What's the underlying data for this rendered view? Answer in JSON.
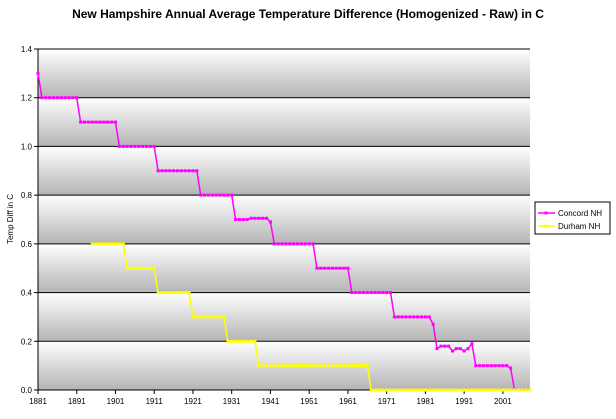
{
  "chart_data": {
    "type": "line",
    "title": "New Hampshire Annual Average Temperature Difference (Homogenized - Raw) in C",
    "xlabel": "",
    "ylabel": "Temp Diff in C",
    "xlim": [
      1881,
      2008
    ],
    "ylim": [
      0,
      1.4
    ],
    "grid": true,
    "legend_position": "right",
    "x_ticks": [
      "1881",
      "1891",
      "1901",
      "1911",
      "1921",
      "1931",
      "1941",
      "1951",
      "1961",
      "1971",
      "1981",
      "1991",
      "2001"
    ],
    "y_ticks": [
      "0.0",
      "0.2",
      "0.4",
      "0.6",
      "0.8",
      "1.0",
      "1.2",
      "1.4"
    ],
    "series": [
      {
        "name": "Concord NH",
        "color": "#ff00ff",
        "segments": [
          {
            "from": 1881,
            "to": 1881,
            "value": 1.3
          },
          {
            "from": 1882,
            "to": 1891,
            "value": 1.2
          },
          {
            "from": 1892,
            "to": 1901,
            "value": 1.1
          },
          {
            "from": 1902,
            "to": 1911,
            "value": 1.0
          },
          {
            "from": 1912,
            "to": 1922,
            "value": 0.9
          },
          {
            "from": 1923,
            "to": 1931,
            "value": 0.8
          },
          {
            "from": 1932,
            "to": 1935,
            "value": 0.7
          },
          {
            "from": 1936,
            "to": 1940,
            "value": 0.705
          },
          {
            "from": 1941,
            "to": 1941,
            "value": 0.69
          },
          {
            "from": 1942,
            "to": 1952,
            "value": 0.6
          },
          {
            "from": 1953,
            "to": 1961,
            "value": 0.5
          },
          {
            "from": 1962,
            "to": 1972,
            "value": 0.4
          },
          {
            "from": 1973,
            "to": 1982,
            "value": 0.3
          },
          {
            "from": 1983,
            "to": 1983,
            "value": 0.27
          },
          {
            "from": 1984,
            "to": 1984,
            "value": 0.17
          },
          {
            "from": 1985,
            "to": 1987,
            "value": 0.18
          },
          {
            "from": 1988,
            "to": 1988,
            "value": 0.16
          },
          {
            "from": 1989,
            "to": 1990,
            "value": 0.17
          },
          {
            "from": 1991,
            "to": 1991,
            "value": 0.16
          },
          {
            "from": 1992,
            "to": 1992,
            "value": 0.17
          },
          {
            "from": 1993,
            "to": 1993,
            "value": 0.19
          },
          {
            "from": 1994,
            "to": 2002,
            "value": 0.1
          },
          {
            "from": 2003,
            "to": 2003,
            "value": 0.09
          },
          {
            "from": 2004,
            "to": 2008,
            "value": 0.0
          }
        ]
      },
      {
        "name": "Durham NH",
        "color": "#ffff00",
        "segments": [
          {
            "from": 1895,
            "to": 1903,
            "value": 0.6
          },
          {
            "from": 1904,
            "to": 1911,
            "value": 0.5
          },
          {
            "from": 1912,
            "to": 1920,
            "value": 0.4
          },
          {
            "from": 1921,
            "to": 1929,
            "value": 0.3
          },
          {
            "from": 1930,
            "to": 1937,
            "value": 0.2
          },
          {
            "from": 1938,
            "to": 1966,
            "value": 0.1
          },
          {
            "from": 1967,
            "to": 2008,
            "value": 0.0
          }
        ]
      }
    ]
  }
}
